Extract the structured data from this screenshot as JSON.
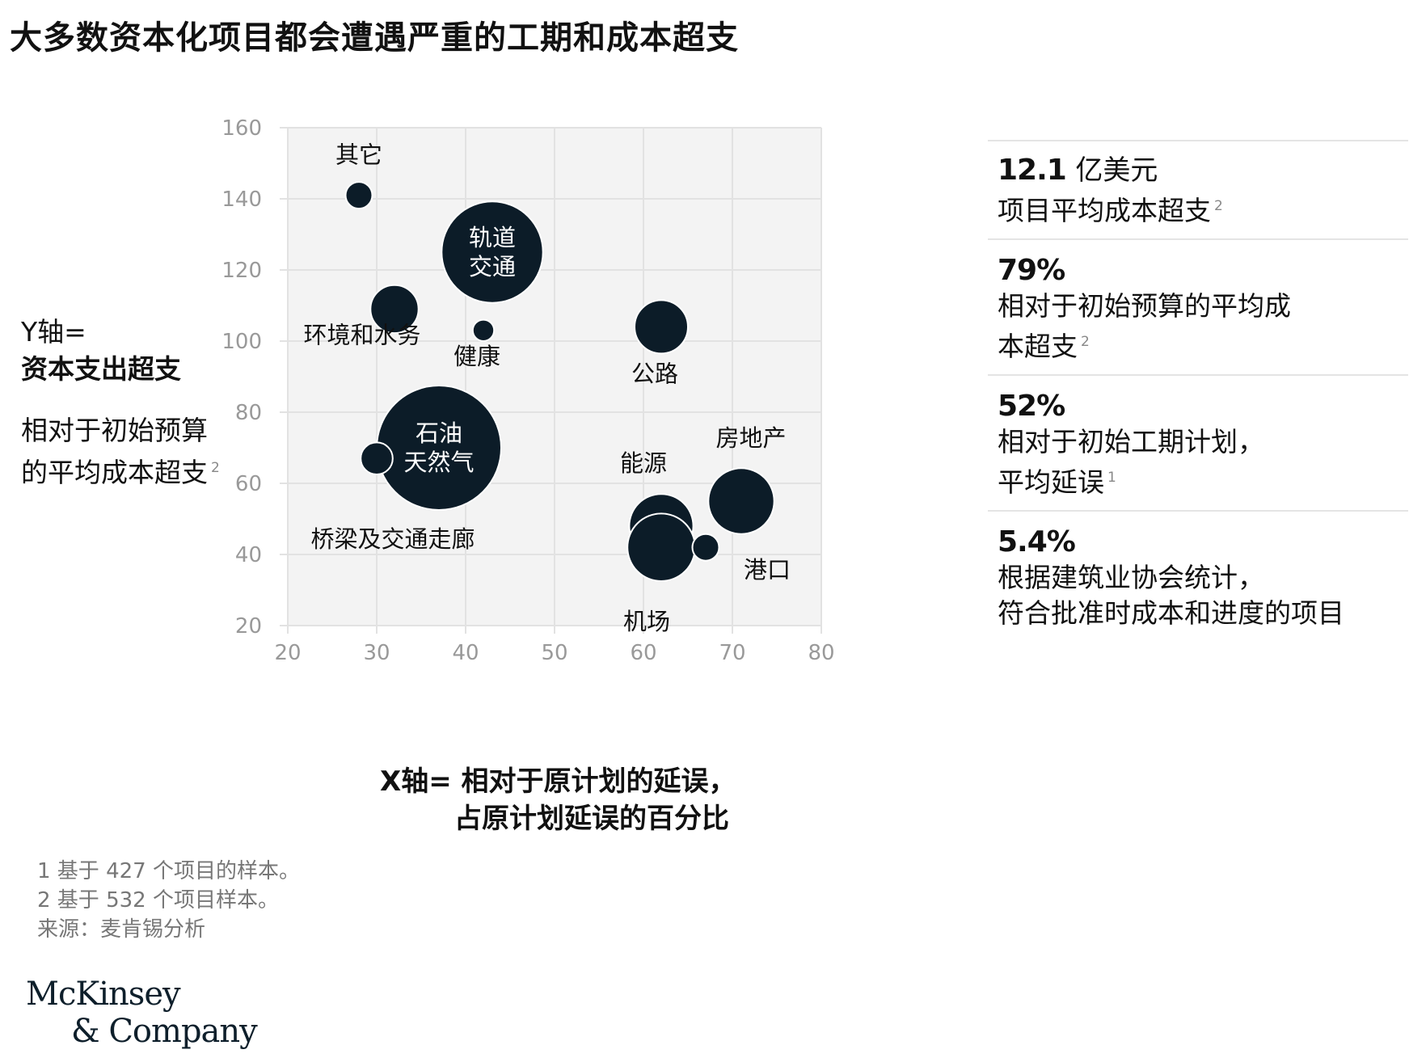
{
  "title": "大多数资本化项目都会遭遇严重的工期和成本超支",
  "y_axis_label": {
    "line1": "Y轴=",
    "line2": "资本支出超支",
    "line3": "相对于初始预算",
    "line4": "的平均成本超支",
    "note_ref": "2"
  },
  "x_axis_label": {
    "line1": "X轴= 相对于原计划的延误，",
    "line2": "占原计划延误的百分比"
  },
  "stats": [
    {
      "value": "12.1",
      "unit": "亿美元",
      "desc": [
        "项目平均成本超支"
      ],
      "note_ref": "2"
    },
    {
      "value": "79%",
      "unit": "",
      "desc": [
        "相对于初始预算的平均成",
        "本超支"
      ],
      "note_ref": "2"
    },
    {
      "value": "52%",
      "unit": "",
      "desc": [
        "相对于初始工期计划，",
        "平均延误"
      ],
      "note_ref": "1"
    },
    {
      "value": "5.4%",
      "unit": "",
      "desc": [
        "根据建筑业协会统计，",
        "符合批准时成本和进度的项目"
      ],
      "note_ref": ""
    }
  ],
  "notes": [
    "1 基于 427 个项目的样本。",
    "2 基于 532 个项目样本。",
    "来源：麦肯锡分析"
  ],
  "logo": {
    "line1": "McKinsey",
    "line2": "& Company"
  },
  "colors": {
    "bubble": "#0c1c28",
    "plot_bg": "#f3f3f3",
    "grid": "#e2e2e2",
    "tick": "#999999"
  },
  "chart_data": {
    "type": "scatter",
    "encoding": "bubble",
    "xlim": [
      20,
      80
    ],
    "ylim": [
      20,
      160
    ],
    "xticks": [
      "20",
      "30",
      "40",
      "50",
      "60",
      "70",
      "80"
    ],
    "yticks": [
      "20",
      "40",
      "60",
      "80",
      "100",
      "120",
      "140",
      "160"
    ],
    "grid": true,
    "points": [
      {
        "name": "其它",
        "x": 28,
        "y": 141,
        "r": 1.5
      },
      {
        "name": "轨道\n交通",
        "x": 43,
        "y": 125,
        "r": 5.7
      },
      {
        "name": "",
        "x": 32,
        "y": 109,
        "r": 2.7
      },
      {
        "name": "",
        "x": 42,
        "y": 103,
        "r": 1.2
      },
      {
        "name": "环境和水务",
        "x": null,
        "y": null,
        "r": null
      },
      {
        "name": "健康",
        "x": null,
        "y": null,
        "r": null
      },
      {
        "name": "公路",
        "x": 62,
        "y": 104,
        "r": 3.0
      },
      {
        "name": "石油\n天然气",
        "x": 37,
        "y": 70,
        "r": 7.0
      },
      {
        "name": "桥梁及交通走廊",
        "x": 30,
        "y": 67,
        "r": 1.8
      },
      {
        "name": "房地产",
        "x": 71,
        "y": 55,
        "r": 3.7
      },
      {
        "name": "能源",
        "x": 62,
        "y": 48,
        "r": 3.6
      },
      {
        "name": "机场",
        "x": 62,
        "y": 42,
        "r": 3.8
      },
      {
        "name": "港口",
        "x": 67,
        "y": 42,
        "r": 1.5
      }
    ]
  }
}
